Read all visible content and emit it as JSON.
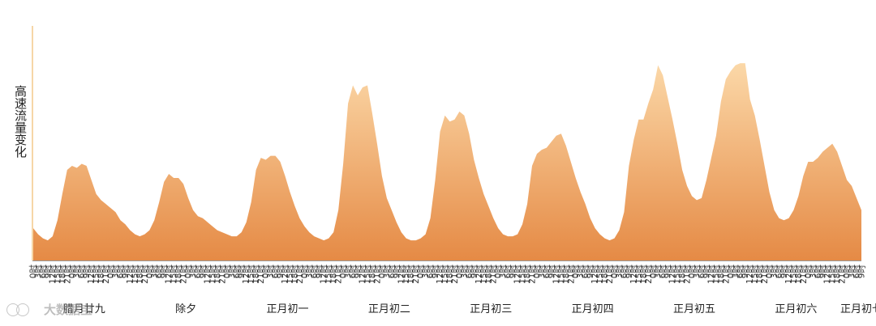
{
  "chart_data": {
    "type": "area",
    "ylabel": "高速流量变化",
    "days": [
      "腊月廿九",
      "除夕",
      "正月初一",
      "正月初二",
      "正月初三",
      "正月初四",
      "正月初五",
      "正月初六",
      "正月初七"
    ],
    "hour_ticks": [
      "0时",
      "3时",
      "6时",
      "9时",
      "12时",
      "15时",
      "18时",
      "21时"
    ],
    "values": [
      16,
      13,
      11,
      10,
      12,
      20,
      33,
      45,
      47,
      46,
      48,
      47,
      40,
      33,
      30,
      28,
      26,
      24,
      20,
      18,
      15,
      13,
      12,
      13,
      15,
      20,
      29,
      39,
      43,
      41,
      41,
      38,
      31,
      25,
      22,
      21,
      19,
      17,
      15,
      14,
      13,
      12,
      12,
      14,
      19,
      29,
      45,
      51,
      50,
      52,
      52,
      49,
      42,
      34,
      27,
      21,
      17,
      14,
      12,
      11,
      10,
      11,
      14,
      25,
      48,
      78,
      87,
      82,
      86,
      87,
      73,
      58,
      42,
      31,
      25,
      19,
      14,
      11,
      10,
      10,
      11,
      13,
      21,
      40,
      64,
      72,
      69,
      70,
      74,
      72,
      63,
      50,
      41,
      33,
      27,
      21,
      16,
      13,
      12,
      12,
      13,
      18,
      28,
      47,
      53,
      55,
      56,
      59,
      62,
      63,
      57,
      49,
      41,
      34,
      28,
      21,
      16,
      13,
      11,
      10,
      11,
      15,
      24,
      47,
      60,
      70,
      70,
      78,
      85,
      97,
      92,
      81,
      70,
      58,
      45,
      37,
      32,
      30,
      31,
      40,
      51,
      62,
      79,
      90,
      94,
      97,
      98,
      98,
      80,
      72,
      60,
      47,
      34,
      25,
      21,
      20,
      21,
      25,
      32,
      42,
      49,
      49,
      51,
      54,
      56,
      58,
      54,
      47,
      40,
      37,
      31,
      25
    ],
    "colors": {
      "fill_top": "#fbd8a8",
      "fill_bottom": "#e58a45",
      "axis": "#f3c98a",
      "grid": "#999999"
    },
    "ylim": [
      0,
      100
    ],
    "grid": false
  },
  "watermark": "大数据宝"
}
